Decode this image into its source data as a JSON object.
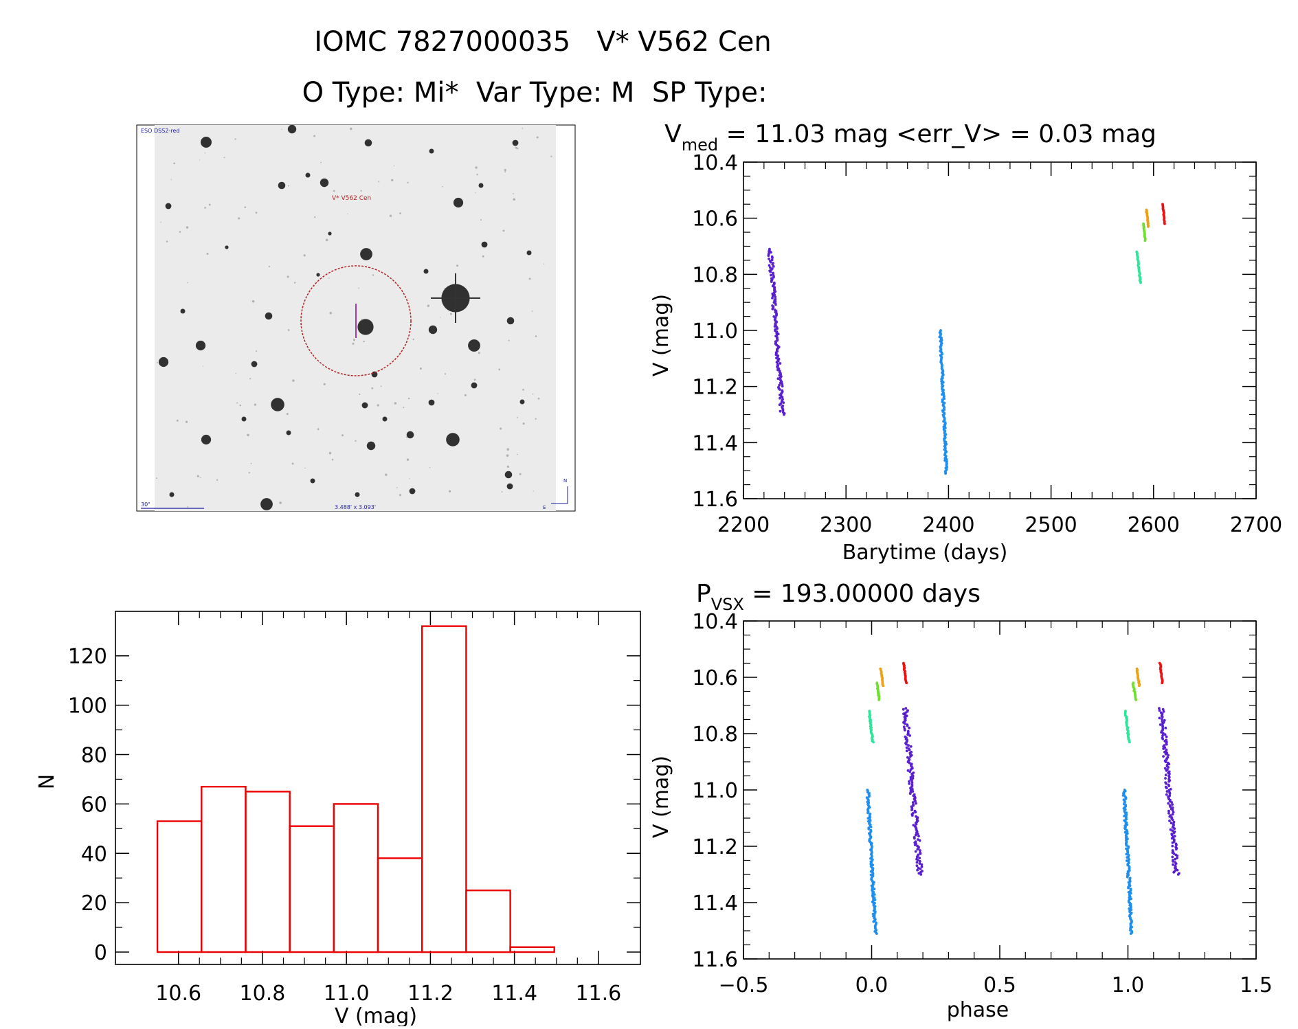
{
  "header": {
    "title": "IOMC 7827000035   V* V562 Cen",
    "subtitle": "O Type: Mi*  Var Type: M  SP Type:"
  },
  "finder": {
    "survey_label": "ESO DSS2-red",
    "target_label": "V* V562 Cen",
    "scale_label": "30\"",
    "size_label": "3.488' x 3.093'",
    "north_label": "N",
    "east_label": "E",
    "circle_color": "#b22222",
    "marker_color": "#8000a0"
  },
  "chart_data": [
    {
      "id": "lightcurve",
      "type": "scatter",
      "title_main": "V",
      "title_sub": "med",
      "title_rest": " = 11.03 mag <err_V> = 0.03 mag",
      "xlabel": "Barytime (days)",
      "ylabel": "V (mag)",
      "xlim": [
        2200,
        2700
      ],
      "ylim": [
        11.6,
        10.4
      ],
      "xticks": [
        2200,
        2300,
        2400,
        2500,
        2600,
        2700
      ],
      "yticks": [
        10.4,
        10.6,
        10.8,
        11.0,
        11.2,
        11.4,
        11.6
      ],
      "xtick_labels": [
        "2200",
        "2300",
        "2400",
        "2500",
        "2600",
        "2700"
      ],
      "ytick_labels": [
        "10.4",
        "10.6",
        "10.8",
        "11.0",
        "11.2",
        "11.4",
        "11.6"
      ],
      "series": [
        {
          "name": "season1",
          "color": "#5a1fd0",
          "x_range": [
            2226,
            2238
          ],
          "y_range": [
            10.71,
            11.3
          ]
        },
        {
          "name": "season2",
          "color": "#1e8fef",
          "x_range": [
            2392,
            2398
          ],
          "y_range": [
            11.0,
            11.51
          ]
        },
        {
          "name": "season3a",
          "color": "#2ee59a",
          "x_range": [
            2584,
            2587
          ],
          "y_range": [
            10.72,
            10.83
          ]
        },
        {
          "name": "season3b",
          "color": "#6ee02a",
          "x_range": [
            2590,
            2592
          ],
          "y_range": [
            10.62,
            10.68
          ]
        },
        {
          "name": "season3c",
          "color": "#f0a010",
          "x_range": [
            2593,
            2595
          ],
          "y_range": [
            10.57,
            10.63
          ]
        },
        {
          "name": "season3d",
          "color": "#ee1111",
          "x_range": [
            2609,
            2611
          ],
          "y_range": [
            10.55,
            10.62
          ]
        }
      ]
    },
    {
      "id": "phased",
      "type": "scatter",
      "title_main": "P",
      "title_sub": "VSX",
      "title_rest": " = 193.00000 days",
      "xlabel": "phase",
      "ylabel": "V (mag)",
      "xlim": [
        -0.5,
        1.5
      ],
      "ylim": [
        11.6,
        10.4
      ],
      "xticks": [
        -0.5,
        0.0,
        0.5,
        1.0,
        1.5
      ],
      "yticks": [
        10.4,
        10.6,
        10.8,
        11.0,
        11.2,
        11.4,
        11.6
      ],
      "xtick_labels": [
        "−0.5",
        "0.0",
        "0.5",
        "1.0",
        "1.5"
      ],
      "ytick_labels": [
        "10.4",
        "10.6",
        "10.8",
        "11.0",
        "11.2",
        "11.4",
        "11.6"
      ],
      "series": [
        {
          "name": "season1",
          "color": "#5a1fd0",
          "x_range": [
            0.13,
            0.19
          ],
          "y_range": [
            10.71,
            11.3
          ]
        },
        {
          "name": "season2",
          "color": "#1e8fef",
          "x_range": [
            -0.015,
            0.015
          ],
          "y_range": [
            11.0,
            11.51
          ]
        },
        {
          "name": "season3a",
          "color": "#2ee59a",
          "x_range": [
            -0.01,
            0.005
          ],
          "y_range": [
            10.72,
            10.83
          ]
        },
        {
          "name": "season3b",
          "color": "#6ee02a",
          "x_range": [
            0.02,
            0.03
          ],
          "y_range": [
            10.62,
            10.68
          ]
        },
        {
          "name": "season3c",
          "color": "#f0a010",
          "x_range": [
            0.035,
            0.045
          ],
          "y_range": [
            10.57,
            10.63
          ]
        },
        {
          "name": "season3d",
          "color": "#ee1111",
          "x_range": [
            0.125,
            0.135
          ],
          "y_range": [
            10.55,
            10.62
          ]
        }
      ]
    },
    {
      "id": "histogram",
      "type": "bar",
      "xlabel": "V (mag)",
      "ylabel": "N",
      "xlim": [
        10.45,
        11.7
      ],
      "ylim": [
        -5,
        138
      ],
      "xticks": [
        10.6,
        10.8,
        11.0,
        11.2,
        11.4,
        11.6
      ],
      "yticks": [
        0,
        20,
        40,
        60,
        80,
        100,
        120
      ],
      "xtick_labels": [
        "10.6",
        "10.8",
        "11.0",
        "11.2",
        "11.4",
        "11.6"
      ],
      "ytick_labels": [
        "0",
        "20",
        "40",
        "60",
        "80",
        "100",
        "120"
      ],
      "bar_color": "#ee0000",
      "bin_edges": [
        10.55,
        10.655,
        10.76,
        10.865,
        10.97,
        11.075,
        11.18,
        11.285,
        11.39,
        11.495
      ],
      "values": [
        53,
        67,
        65,
        51,
        60,
        38,
        132,
        25,
        2
      ]
    }
  ]
}
